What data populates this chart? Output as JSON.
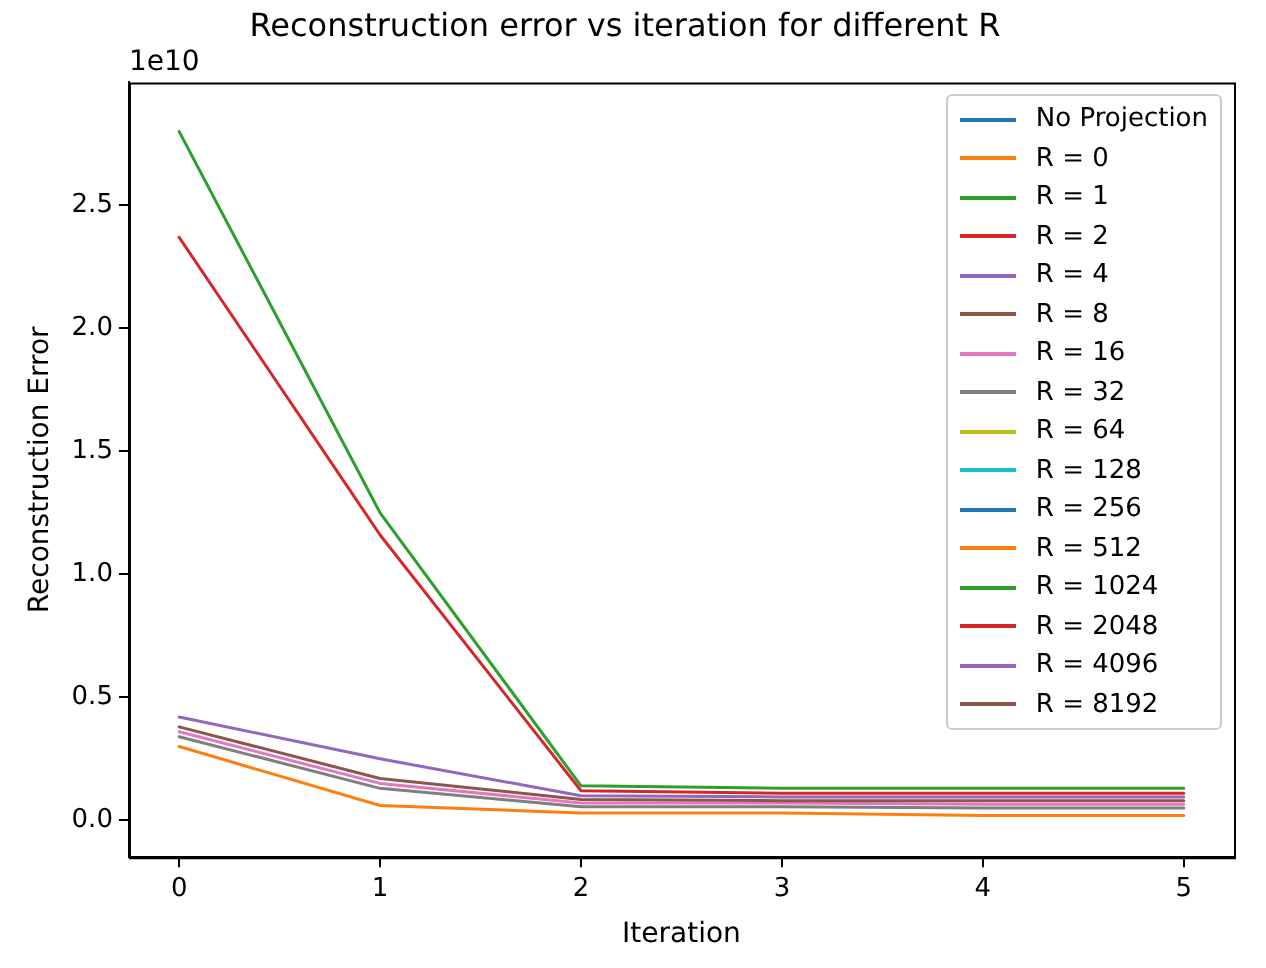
{
  "chart_data": {
    "type": "line",
    "title": "Reconstruction error vs iteration for different R",
    "xlabel": "Iteration",
    "ylabel": "Reconstruction Error",
    "annotations": [
      "1e10"
    ],
    "x": [
      0,
      1,
      2,
      3,
      4,
      5
    ],
    "xlim": [
      -0.25,
      5.25
    ],
    "xticks": [
      0,
      1,
      2,
      3,
      4,
      5
    ],
    "ylim": [
      -0.15,
      3.0
    ],
    "yticks": [
      {
        "value": 0,
        "label": "0.0"
      },
      {
        "value": 0.5,
        "label": "0.5"
      },
      {
        "value": 1,
        "label": "1.0"
      },
      {
        "value": 1.5,
        "label": "1.5"
      },
      {
        "value": 2,
        "label": "2.0"
      },
      {
        "value": 2.5,
        "label": "2.5"
      }
    ],
    "grid": false,
    "legend": "top right",
    "marker": "none",
    "line_style": "solid",
    "series": [
      {
        "name": "No Projection",
        "color": "#1f77b4",
        "values": [
          null,
          null,
          null,
          null,
          null,
          null
        ]
      },
      {
        "name": "R = 0",
        "color": "#ff7f0e",
        "values": [
          null,
          null,
          null,
          null,
          null,
          null
        ]
      },
      {
        "name": "R = 1",
        "color": "#2ca02c",
        "values": [
          2.8,
          1.25,
          0.14,
          0.13,
          0.13,
          0.13
        ]
      },
      {
        "name": "R = 2",
        "color": "#d62728",
        "values": [
          2.37,
          1.16,
          0.12,
          0.11,
          0.11,
          0.11
        ]
      },
      {
        "name": "R = 4",
        "color": "#9467bd",
        "values": [
          null,
          null,
          null,
          null,
          null,
          null
        ]
      },
      {
        "name": "R = 8",
        "color": "#8c564b",
        "values": [
          null,
          null,
          null,
          null,
          null,
          null
        ]
      },
      {
        "name": "R = 16",
        "color": "#e377c2",
        "values": [
          0.36,
          0.15,
          0.07,
          0.07,
          0.065,
          0.065
        ]
      },
      {
        "name": "R = 32",
        "color": "#7f7f7f",
        "values": [
          0.34,
          0.13,
          0.055,
          0.055,
          0.05,
          0.05
        ]
      },
      {
        "name": "R = 64",
        "color": "#bcbd22",
        "values": [
          null,
          null,
          null,
          null,
          null,
          null
        ]
      },
      {
        "name": "R = 128",
        "color": "#17becf",
        "values": [
          null,
          null,
          null,
          null,
          null,
          null
        ]
      },
      {
        "name": "R = 256",
        "color": "#1f77b4",
        "values": [
          null,
          null,
          null,
          null,
          null,
          null
        ]
      },
      {
        "name": "R = 512",
        "color": "#ff7f0e",
        "values": [
          0.3,
          0.06,
          0.03,
          0.03,
          0.02,
          0.02
        ]
      },
      {
        "name": "R = 1024",
        "color": "#2ca02c",
        "values": [
          null,
          null,
          null,
          null,
          null,
          null
        ]
      },
      {
        "name": "R = 2048",
        "color": "#d62728",
        "values": [
          null,
          null,
          null,
          null,
          null,
          null
        ]
      },
      {
        "name": "R = 4096",
        "color": "#9467bd",
        "values": [
          0.42,
          0.25,
          0.1,
          0.095,
          0.095,
          0.095
        ]
      },
      {
        "name": "R = 8192",
        "color": "#8c564b",
        "values": [
          0.38,
          0.17,
          0.085,
          0.08,
          0.08,
          0.08
        ]
      }
    ]
  }
}
